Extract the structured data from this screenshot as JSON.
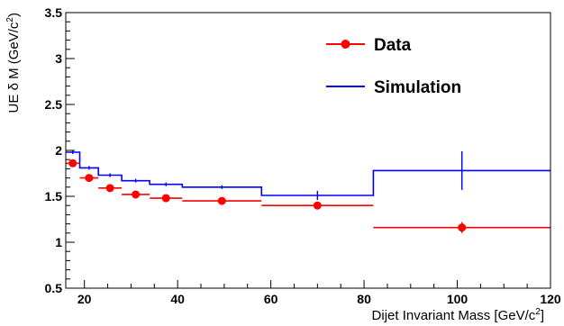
{
  "chart_data": {
    "type": "scatter",
    "xlabel": "Dijet Invariant Mass [GeV/c",
    "xlabel_sup": "2",
    "xlabel_end": "]",
    "ylabel": "UE δ M (GeV/c",
    "ylabel_sup": "2",
    "ylabel_end": ")",
    "xlim": [
      16,
      120
    ],
    "ylim": [
      0.5,
      3.5
    ],
    "xticks": [
      20,
      40,
      60,
      80,
      100,
      120
    ],
    "yticks": [
      0.5,
      1,
      1.5,
      2,
      2.5,
      3,
      3.5
    ],
    "ytick_labels": [
      "0.5",
      "1",
      "1.5",
      "2",
      "2.5",
      "3",
      "3.5"
    ],
    "legend": {
      "position": "top-right"
    },
    "series": [
      {
        "name": "Data",
        "color": "#ff0000",
        "style": "points-with-x-bars",
        "points": [
          {
            "x": 17.5,
            "xlo": 16,
            "xhi": 19,
            "y": 1.86,
            "yerr": 0.03
          },
          {
            "x": 21,
            "xlo": 19,
            "xhi": 23,
            "y": 1.7,
            "yerr": 0.02
          },
          {
            "x": 25.5,
            "xlo": 23,
            "xhi": 28,
            "y": 1.59,
            "yerr": 0.02
          },
          {
            "x": 31,
            "xlo": 28,
            "xhi": 34,
            "y": 1.52,
            "yerr": 0.02
          },
          {
            "x": 37.5,
            "xlo": 34,
            "xhi": 41,
            "y": 1.48,
            "yerr": 0.02
          },
          {
            "x": 49.5,
            "xlo": 41,
            "xhi": 58,
            "y": 1.45,
            "yerr": 0.02
          },
          {
            "x": 70,
            "xlo": 58,
            "xhi": 82,
            "y": 1.4,
            "yerr": 0.03
          },
          {
            "x": 101,
            "xlo": 82,
            "xhi": 120,
            "y": 1.16,
            "yerr": 0.06
          }
        ]
      },
      {
        "name": "Simulation",
        "color": "#0000ff",
        "style": "step-histogram",
        "points": [
          {
            "x": 17.5,
            "xlo": 16,
            "xhi": 19,
            "y": 1.98,
            "yerr": 0.02
          },
          {
            "x": 21,
            "xlo": 19,
            "xhi": 23,
            "y": 1.81,
            "yerr": 0.02
          },
          {
            "x": 25.5,
            "xlo": 23,
            "xhi": 28,
            "y": 1.73,
            "yerr": 0.02
          },
          {
            "x": 31,
            "xlo": 28,
            "xhi": 34,
            "y": 1.67,
            "yerr": 0.02
          },
          {
            "x": 37.5,
            "xlo": 34,
            "xhi": 41,
            "y": 1.63,
            "yerr": 0.02
          },
          {
            "x": 49.5,
            "xlo": 41,
            "xhi": 58,
            "y": 1.6,
            "yerr": 0.02
          },
          {
            "x": 70,
            "xlo": 58,
            "xhi": 82,
            "y": 1.51,
            "yerr": 0.05
          },
          {
            "x": 101,
            "xlo": 82,
            "xhi": 120,
            "y": 1.78,
            "yerr": 0.21
          }
        ]
      }
    ]
  }
}
